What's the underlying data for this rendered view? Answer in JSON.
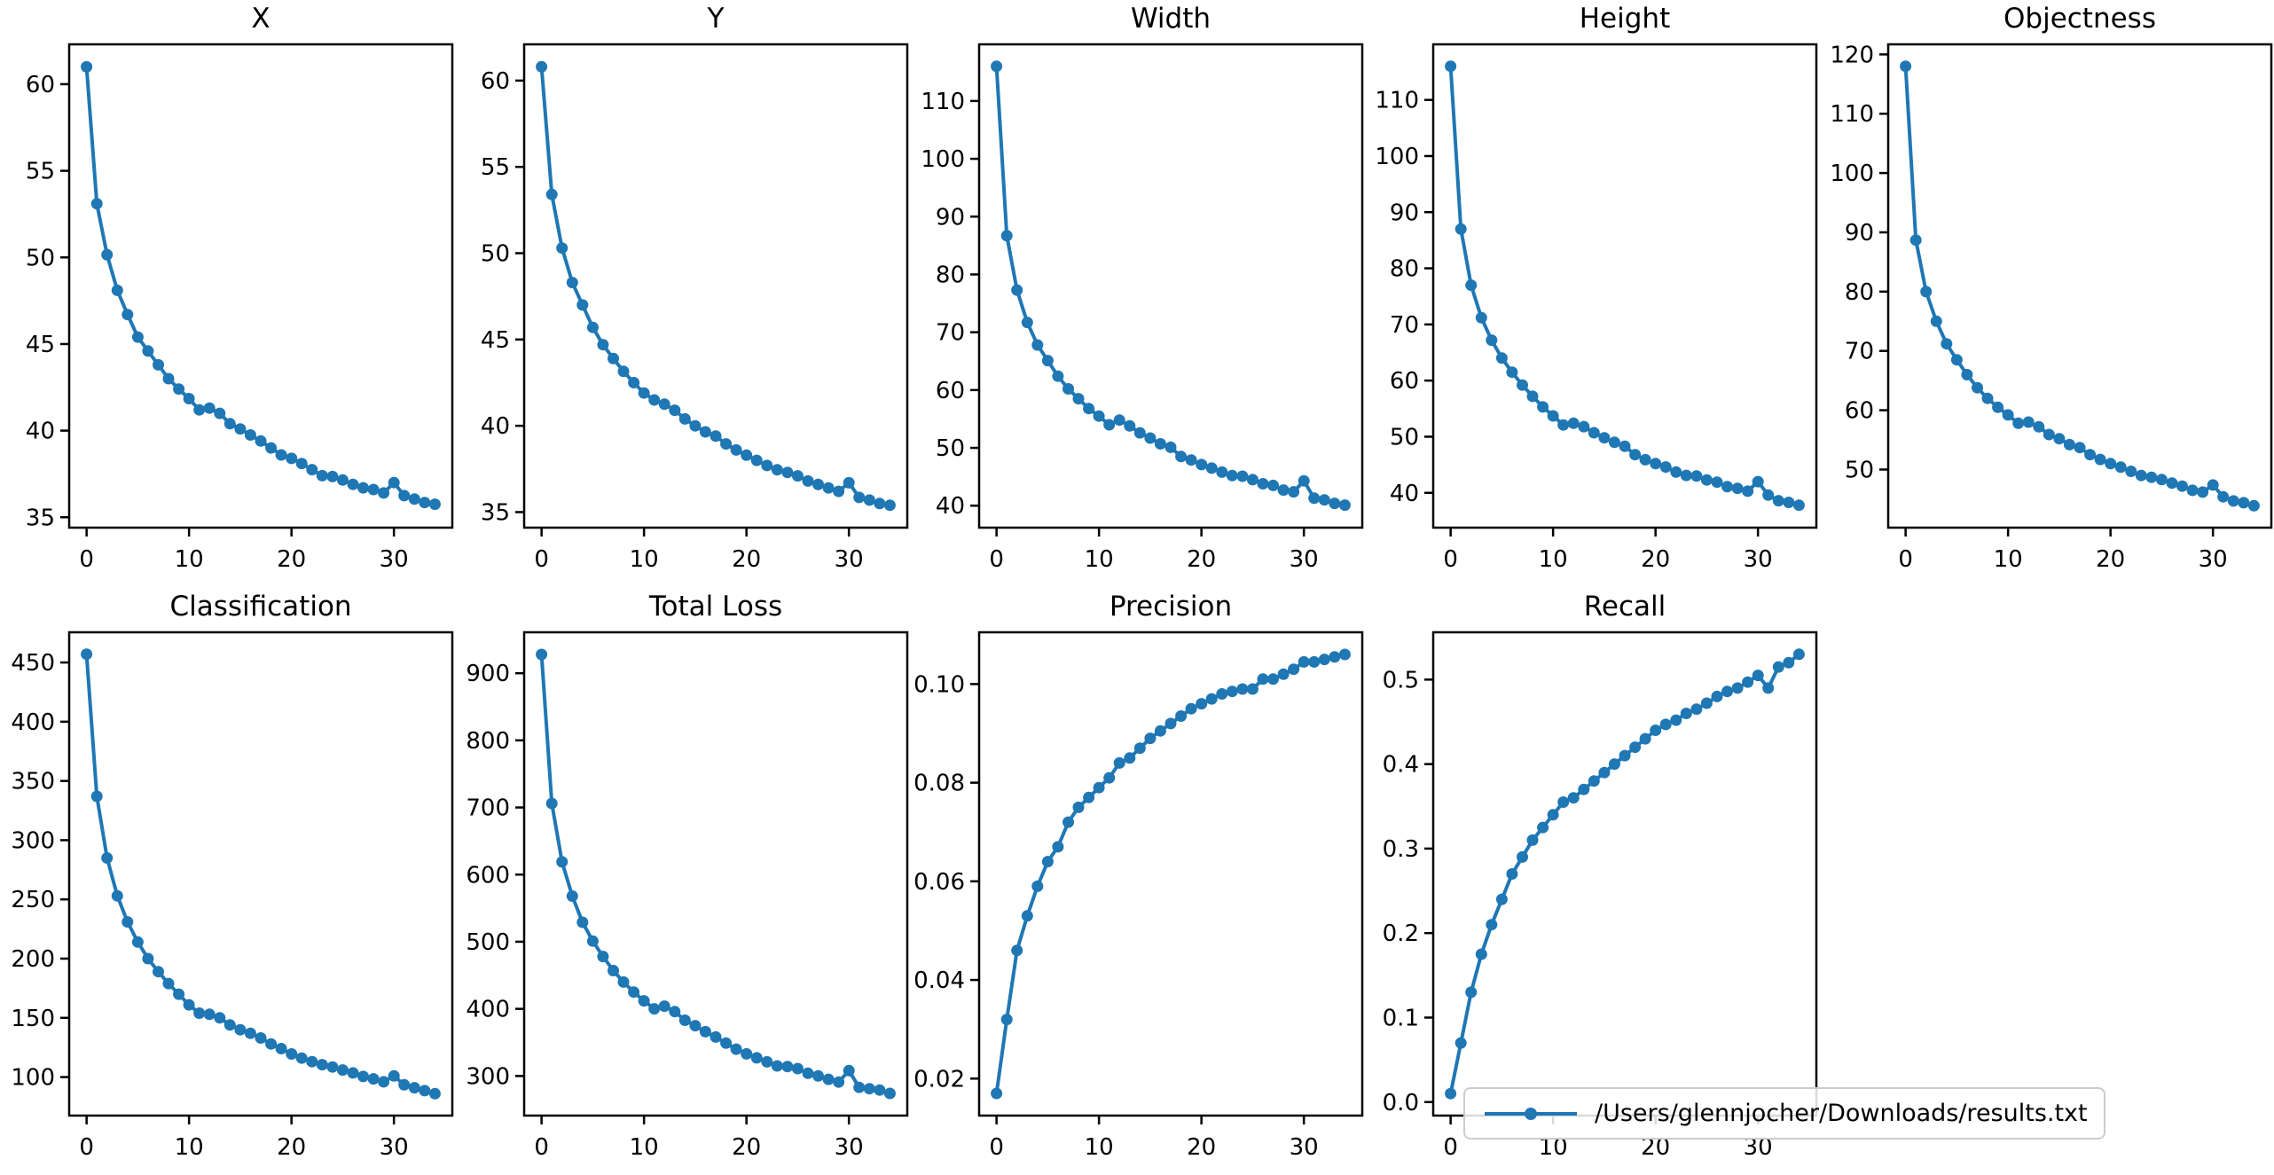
{
  "figure": {
    "background": "#ffffff",
    "line_color": "#1f77b4",
    "axes_color": "#000000",
    "legend": {
      "label": "/Users/glennjocher/Downloads/results.txt"
    }
  },
  "chart_data": [
    {
      "type": "line",
      "title": "X",
      "xlabel": "",
      "ylabel": "",
      "x": [
        0,
        1,
        2,
        3,
        4,
        5,
        6,
        7,
        8,
        9,
        10,
        11,
        12,
        13,
        14,
        15,
        16,
        17,
        18,
        19,
        20,
        21,
        22,
        23,
        24,
        25,
        26,
        27,
        28,
        29,
        30,
        31,
        32,
        33,
        34
      ],
      "values": [
        61.0,
        53.1,
        50.15,
        48.1,
        46.7,
        45.4,
        44.6,
        43.8,
        43.0,
        42.4,
        41.85,
        41.2,
        41.3,
        41.0,
        40.4,
        40.1,
        39.75,
        39.4,
        39.0,
        38.6,
        38.4,
        38.1,
        37.75,
        37.4,
        37.35,
        37.15,
        36.9,
        36.7,
        36.6,
        36.4,
        37.0,
        36.25,
        36.05,
        35.85,
        35.75
      ],
      "xlim": [
        -1.7,
        35.7
      ],
      "ylim": [
        34.4,
        62.3
      ],
      "xticks": [
        0,
        10,
        20,
        30
      ],
      "yticks": [
        35,
        40,
        45,
        50,
        55,
        60
      ],
      "ytick_decimals": 0,
      "grid": false,
      "marker": "o",
      "row": 0,
      "col": 0
    },
    {
      "type": "line",
      "title": "Y",
      "xlabel": "",
      "ylabel": "",
      "x": [
        0,
        1,
        2,
        3,
        4,
        5,
        6,
        7,
        8,
        9,
        10,
        11,
        12,
        13,
        14,
        15,
        16,
        17,
        18,
        19,
        20,
        21,
        22,
        23,
        24,
        25,
        26,
        27,
        28,
        29,
        30,
        31,
        32,
        33,
        34
      ],
      "values": [
        60.8,
        53.4,
        50.3,
        48.3,
        47.0,
        45.7,
        44.7,
        43.9,
        43.15,
        42.5,
        41.9,
        41.5,
        41.25,
        40.9,
        40.4,
        40.0,
        39.65,
        39.4,
        38.95,
        38.6,
        38.3,
        38.0,
        37.7,
        37.45,
        37.3,
        37.1,
        36.8,
        36.6,
        36.4,
        36.2,
        36.7,
        35.85,
        35.7,
        35.5,
        35.4
      ],
      "xlim": [
        -1.7,
        35.7
      ],
      "ylim": [
        34.1,
        62.1
      ],
      "xticks": [
        0,
        10,
        20,
        30
      ],
      "yticks": [
        35,
        40,
        45,
        50,
        55,
        60
      ],
      "ytick_decimals": 0,
      "grid": false,
      "marker": "o",
      "row": 0,
      "col": 1
    },
    {
      "type": "line",
      "title": "Width",
      "xlabel": "",
      "ylabel": "",
      "x": [
        0,
        1,
        2,
        3,
        4,
        5,
        6,
        7,
        8,
        9,
        10,
        11,
        12,
        13,
        14,
        15,
        16,
        17,
        18,
        19,
        20,
        21,
        22,
        23,
        24,
        25,
        26,
        27,
        28,
        29,
        30,
        31,
        32,
        33,
        34
      ],
      "values": [
        116.0,
        86.7,
        77.3,
        71.7,
        67.8,
        65.1,
        62.4,
        60.2,
        58.5,
        56.8,
        55.5,
        54.0,
        54.8,
        53.8,
        52.6,
        51.7,
        50.7,
        50.1,
        48.5,
        47.9,
        47.1,
        46.5,
        45.8,
        45.2,
        45.1,
        44.5,
        43.8,
        43.5,
        42.7,
        42.4,
        44.3,
        41.3,
        41.0,
        40.4,
        40.1
      ],
      "xlim": [
        -1.7,
        35.7
      ],
      "ylim": [
        36.2,
        119.8
      ],
      "xticks": [
        0,
        10,
        20,
        30
      ],
      "yticks": [
        40,
        50,
        60,
        70,
        80,
        90,
        100,
        110
      ],
      "ytick_decimals": 0,
      "grid": false,
      "marker": "o",
      "row": 0,
      "col": 2
    },
    {
      "type": "line",
      "title": "Height",
      "xlabel": "",
      "ylabel": "",
      "x": [
        0,
        1,
        2,
        3,
        4,
        5,
        6,
        7,
        8,
        9,
        10,
        11,
        12,
        13,
        14,
        15,
        16,
        17,
        18,
        19,
        20,
        21,
        22,
        23,
        24,
        25,
        26,
        27,
        28,
        29,
        30,
        31,
        32,
        33,
        34
      ],
      "values": [
        116.0,
        87.0,
        77.0,
        71.2,
        67.2,
        64.0,
        61.5,
        59.2,
        57.2,
        55.3,
        53.7,
        52.1,
        52.4,
        51.8,
        50.7,
        49.8,
        49.0,
        48.3,
        46.8,
        45.9,
        45.2,
        44.6,
        43.7,
        43.1,
        43.0,
        42.3,
        41.9,
        41.1,
        40.8,
        40.3,
        42.0,
        39.6,
        38.6,
        38.3,
        37.8
      ],
      "xlim": [
        -1.7,
        35.7
      ],
      "ylim": [
        33.8,
        119.9
      ],
      "xticks": [
        0,
        10,
        20,
        30
      ],
      "yticks": [
        40,
        50,
        60,
        70,
        80,
        90,
        100,
        110
      ],
      "ytick_decimals": 0,
      "grid": false,
      "marker": "o",
      "row": 0,
      "col": 3
    },
    {
      "type": "line",
      "title": "Objectness",
      "xlabel": "",
      "ylabel": "",
      "x": [
        0,
        1,
        2,
        3,
        4,
        5,
        6,
        7,
        8,
        9,
        10,
        11,
        12,
        13,
        14,
        15,
        16,
        17,
        18,
        19,
        20,
        21,
        22,
        23,
        24,
        25,
        26,
        27,
        28,
        29,
        30,
        31,
        32,
        33,
        34
      ],
      "values": [
        118.0,
        88.7,
        80.0,
        75.0,
        71.2,
        68.5,
        66.0,
        63.8,
        62.0,
        60.5,
        59.2,
        57.8,
        58.0,
        57.2,
        55.9,
        55.2,
        54.2,
        53.7,
        52.5,
        51.7,
        51.0,
        50.4,
        49.7,
        49.0,
        48.7,
        48.3,
        47.7,
        47.2,
        46.5,
        46.2,
        47.4,
        45.4,
        44.7,
        44.4,
        43.9
      ],
      "xlim": [
        -1.7,
        35.7
      ],
      "ylim": [
        40.2,
        121.7
      ],
      "xticks": [
        0,
        10,
        20,
        30
      ],
      "yticks": [
        50,
        60,
        70,
        80,
        90,
        100,
        110,
        120
      ],
      "ytick_decimals": 0,
      "grid": false,
      "marker": "o",
      "row": 0,
      "col": 4
    },
    {
      "type": "line",
      "title": "Classification",
      "xlabel": "",
      "ylabel": "",
      "x": [
        0,
        1,
        2,
        3,
        4,
        5,
        6,
        7,
        8,
        9,
        10,
        11,
        12,
        13,
        14,
        15,
        16,
        17,
        18,
        19,
        20,
        21,
        22,
        23,
        24,
        25,
        26,
        27,
        28,
        29,
        30,
        31,
        32,
        33,
        34
      ],
      "values": [
        457,
        337,
        285,
        253,
        231,
        214,
        200,
        189,
        179,
        170,
        161,
        154,
        153,
        150,
        144,
        140,
        137,
        133,
        128,
        124,
        119.5,
        116,
        113,
        110.5,
        108.5,
        106,
        103.5,
        100.5,
        98.5,
        96,
        101,
        93.5,
        91,
        88.5,
        86
      ],
      "xlim": [
        -1.7,
        35.7
      ],
      "ylim": [
        67.5,
        475.5
      ],
      "xticks": [
        0,
        10,
        20,
        30
      ],
      "yticks": [
        100,
        150,
        200,
        250,
        300,
        350,
        400,
        450
      ],
      "ytick_decimals": 0,
      "grid": false,
      "marker": "o",
      "row": 1,
      "col": 0
    },
    {
      "type": "line",
      "title": "Total Loss",
      "xlabel": "",
      "ylabel": "",
      "x": [
        0,
        1,
        2,
        3,
        4,
        5,
        6,
        7,
        8,
        9,
        10,
        11,
        12,
        13,
        14,
        15,
        16,
        17,
        18,
        19,
        20,
        21,
        22,
        23,
        24,
        25,
        26,
        27,
        28,
        29,
        30,
        31,
        32,
        33,
        34
      ],
      "values": [
        928,
        706,
        619,
        568,
        529,
        501,
        478,
        457,
        440,
        425,
        412,
        400,
        404,
        396,
        383,
        375,
        366,
        358,
        349,
        340,
        333,
        327,
        321,
        315,
        314,
        311,
        304,
        300,
        295,
        291,
        308,
        283,
        281,
        279,
        274
      ],
      "xlim": [
        -1.7,
        35.7
      ],
      "ylim": [
        241,
        961
      ],
      "xticks": [
        0,
        10,
        20,
        30
      ],
      "yticks": [
        300,
        400,
        500,
        600,
        700,
        800,
        900
      ],
      "ytick_decimals": 0,
      "grid": false,
      "marker": "o",
      "row": 1,
      "col": 1
    },
    {
      "type": "line",
      "title": "Precision",
      "xlabel": "",
      "ylabel": "",
      "x": [
        0,
        1,
        2,
        3,
        4,
        5,
        6,
        7,
        8,
        9,
        10,
        11,
        12,
        13,
        14,
        15,
        16,
        17,
        18,
        19,
        20,
        21,
        22,
        23,
        24,
        25,
        26,
        27,
        28,
        29,
        30,
        31,
        32,
        33,
        34
      ],
      "values": [
        0.017,
        0.032,
        0.046,
        0.053,
        0.059,
        0.064,
        0.067,
        0.072,
        0.075,
        0.077,
        0.079,
        0.081,
        0.084,
        0.085,
        0.087,
        0.089,
        0.0905,
        0.092,
        0.0935,
        0.095,
        0.096,
        0.097,
        0.098,
        0.0985,
        0.099,
        0.099,
        0.101,
        0.101,
        0.102,
        0.103,
        0.1045,
        0.1045,
        0.105,
        0.1055,
        0.106
      ],
      "xlim": [
        -1.7,
        35.7
      ],
      "ylim": [
        0.0125,
        0.1105
      ],
      "xticks": [
        0,
        10,
        20,
        30
      ],
      "yticks": [
        0.02,
        0.04,
        0.06,
        0.08,
        0.1
      ],
      "ytick_decimals": 2,
      "grid": false,
      "marker": "o",
      "row": 1,
      "col": 2
    },
    {
      "type": "line",
      "title": "Recall",
      "xlabel": "",
      "ylabel": "",
      "x": [
        0,
        1,
        2,
        3,
        4,
        5,
        6,
        7,
        8,
        9,
        10,
        11,
        12,
        13,
        14,
        15,
        16,
        17,
        18,
        19,
        20,
        21,
        22,
        23,
        24,
        25,
        26,
        27,
        28,
        29,
        30,
        31,
        32,
        33,
        34
      ],
      "values": [
        0.01,
        0.07,
        0.13,
        0.175,
        0.21,
        0.24,
        0.27,
        0.29,
        0.31,
        0.325,
        0.34,
        0.355,
        0.36,
        0.37,
        0.38,
        0.39,
        0.4,
        0.41,
        0.42,
        0.43,
        0.44,
        0.447,
        0.452,
        0.46,
        0.465,
        0.472,
        0.48,
        0.486,
        0.49,
        0.497,
        0.505,
        0.49,
        0.515,
        0.52,
        0.53
      ],
      "xlim": [
        -1.7,
        35.7
      ],
      "ylim": [
        -0.016,
        0.556
      ],
      "xticks": [
        0,
        10,
        20,
        30
      ],
      "yticks": [
        0.0,
        0.1,
        0.2,
        0.3,
        0.4,
        0.5
      ],
      "ytick_decimals": 1,
      "grid": false,
      "marker": "o",
      "row": 1,
      "col": 3
    }
  ]
}
